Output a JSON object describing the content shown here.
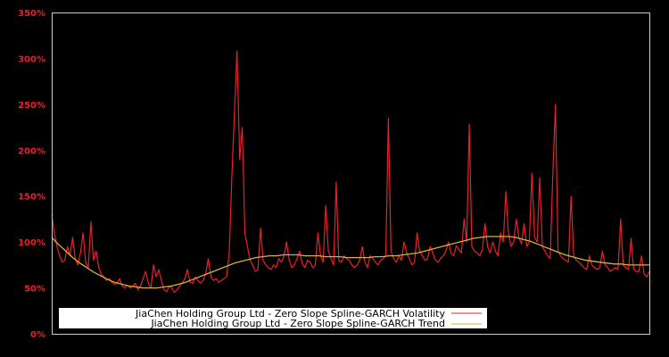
{
  "chart_data": {
    "type": "line",
    "title": "",
    "xlabel": "",
    "ylabel": "",
    "ylim": [
      0,
      350
    ],
    "y_unit": "%",
    "yticks": [
      "0%",
      "50%",
      "100%",
      "150%",
      "200%",
      "250%",
      "300%",
      "350%"
    ],
    "ytick_values": [
      0,
      50,
      100,
      150,
      200,
      250,
      300,
      350
    ],
    "grid": false,
    "background": "#000000",
    "axis_color": "#cccccc",
    "tick_label_color": "#e8202a",
    "legend_position": "lower left, inside plot",
    "x_points": 150,
    "series": [
      {
        "name": "JiaChen Holding Group Ltd - Zero Slope Spline-GARCH Volatility",
        "color": "#e8202a",
        "values": [
          130,
          110,
          95,
          85,
          78,
          80,
          95,
          85,
          105,
          82,
          75,
          88,
          110,
          78,
          72,
          122,
          80,
          90,
          72,
          65,
          62,
          58,
          60,
          56,
          54,
          55,
          60,
          52,
          50,
          53,
          50,
          52,
          55,
          48,
          52,
          60,
          68,
          55,
          50,
          75,
          62,
          70,
          58,
          48,
          46,
          52,
          50,
          45,
          48,
          52,
          55,
          60,
          70,
          56,
          55,
          62,
          58,
          55,
          58,
          65,
          82,
          62,
          58,
          60,
          56,
          58,
          60,
          62,
          88,
          170,
          240,
          308,
          190,
          225,
          110,
          95,
          80,
          75,
          68,
          70,
          115,
          80,
          75,
          72,
          70,
          75,
          72,
          82,
          78,
          85,
          100,
          80,
          72,
          75,
          82,
          90,
          76,
          72,
          80,
          78,
          72,
          75,
          110,
          85,
          78,
          140,
          90,
          82,
          75,
          165,
          80,
          78,
          85,
          82,
          80,
          75,
          72,
          75,
          80,
          95,
          78,
          72,
          85,
          82,
          78,
          75,
          80,
          82,
          85,
          235,
          90,
          82,
          78,
          85,
          80,
          100,
          88,
          82,
          75,
          78,
          110,
          90,
          85,
          80,
          82,
          95,
          88,
          80,
          78,
          82,
          85,
          90,
          100,
          88,
          85,
          96,
          92,
          88,
          125,
          100,
          228,
          95,
          90,
          88,
          85,
          92,
          120,
          95,
          88,
          100,
          90,
          85,
          110,
          100,
          155,
          110,
          95,
          100,
          125,
          105,
          98,
          120,
          95,
          100,
          175,
          105,
          100,
          170,
          95,
          90,
          85,
          82,
          172,
          250,
          90,
          85,
          82,
          80,
          78,
          150,
          85,
          80,
          78,
          75,
          72,
          70,
          85,
          75,
          72,
          70,
          72,
          90,
          75,
          72,
          68,
          70,
          72,
          70,
          125,
          75,
          72,
          70,
          104,
          70,
          68,
          68,
          85,
          65,
          62,
          68
        ]
      },
      {
        "name": "JiaChen Holding Group Ltd - Zero Slope Spline-GARCH Trend",
        "color": "#d4b040",
        "values": [
          105,
          97,
          90,
          83,
          77,
          72,
          67,
          63,
          59,
          56,
          54,
          52,
          51,
          50,
          50,
          50,
          51,
          52,
          54,
          56,
          59,
          62,
          65,
          68,
          71,
          74,
          77,
          79,
          81,
          83,
          84,
          85,
          85,
          86,
          86,
          86,
          85,
          85,
          85,
          84,
          84,
          84,
          83,
          83,
          83,
          83,
          84,
          84,
          85,
          85,
          86,
          87,
          88,
          90,
          92,
          94,
          96,
          98,
          100,
          102,
          104,
          105,
          106,
          106,
          106,
          106,
          105,
          103,
          101,
          98,
          95,
          92,
          89,
          86,
          84,
          82,
          80,
          79,
          78,
          77,
          76,
          76,
          75,
          75,
          75,
          75
        ]
      }
    ]
  },
  "legend": {
    "items": [
      {
        "label": "JiaChen Holding Group Ltd - Zero Slope Spline-GARCH Volatility",
        "color": "#e8202a"
      },
      {
        "label": "JiaChen Holding Group Ltd - Zero Slope Spline-GARCH Trend",
        "color": "#d4b040"
      }
    ]
  }
}
